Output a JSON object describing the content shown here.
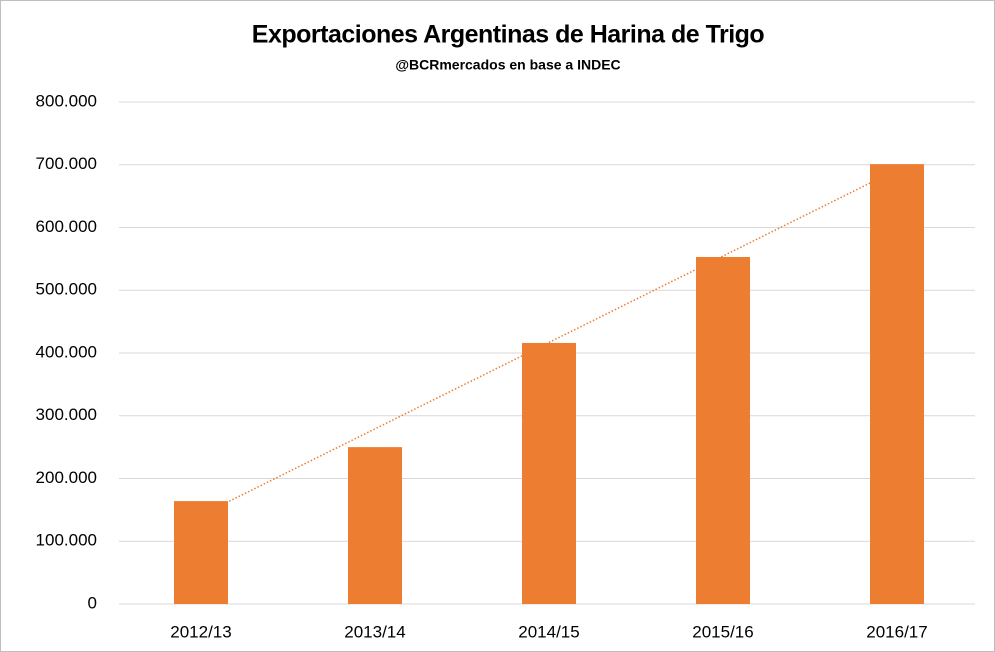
{
  "chart_data": {
    "type": "bar",
    "title": "Exportaciones Argentinas de Harina de Trigo",
    "subtitle": "@BCRmercados  en base a INDEC",
    "categories": [
      "2012/13",
      "2013/14",
      "2014/15",
      "2015/16",
      "2016/17"
    ],
    "values": [
      164000,
      250000,
      416000,
      553000,
      701000
    ],
    "color": "#ed7d31",
    "trendline": "linear",
    "ylim": [
      0,
      800000
    ],
    "yticks": [
      0,
      {
        "value": 100000,
        "label": "100.000"
      },
      {
        "value": 200000,
        "label": "200.000"
      },
      {
        "value": 300000,
        "label": "300.000"
      },
      {
        "value": 400000,
        "label": "400.000"
      },
      {
        "value": 500000,
        "label": "500.000"
      },
      {
        "value": 600000,
        "label": "600.000"
      },
      {
        "value": 700000,
        "label": "700.000"
      },
      {
        "value": 800000,
        "label": "800.000"
      }
    ],
    "grid": true
  }
}
